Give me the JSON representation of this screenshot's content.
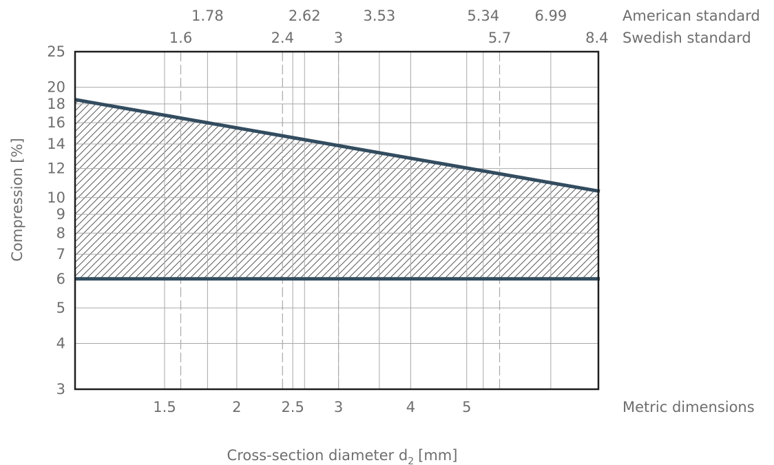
{
  "chart_data": {
    "type": "area",
    "xlabel": "Cross-section diameter d",
    "xlabel_sub": "2",
    "xlabel_unit": "[mm]",
    "ylabel": "Compression [%]",
    "x_scale": "log",
    "y_scale": "log",
    "xlim": [
      1.05,
      8.45
    ],
    "ylim": [
      3,
      25
    ],
    "grid": true,
    "y_ticks": [
      3,
      4,
      5,
      6,
      7,
      8,
      9,
      10,
      12,
      14,
      16,
      18,
      20,
      25
    ],
    "metric_ticks": [
      1.5,
      2,
      2.5,
      3,
      4,
      5
    ],
    "metric_label": "Metric dimensions",
    "american_ticks": [
      "1.78",
      "2.62",
      "3.53",
      "5.34",
      "6.99"
    ],
    "american_label": "American standard",
    "swedish_ticks": [
      "1.6",
      "2.4",
      "3",
      "5.7",
      "8.4"
    ],
    "swedish_label": "Swedish standard",
    "series": [
      {
        "x": [
          1.05,
          8.45
        ],
        "y": [
          18.5,
          10.4
        ]
      },
      {
        "x": [
          1.05,
          8.45
        ],
        "y": [
          6,
          6
        ]
      }
    ],
    "fill_between": "hatched"
  }
}
